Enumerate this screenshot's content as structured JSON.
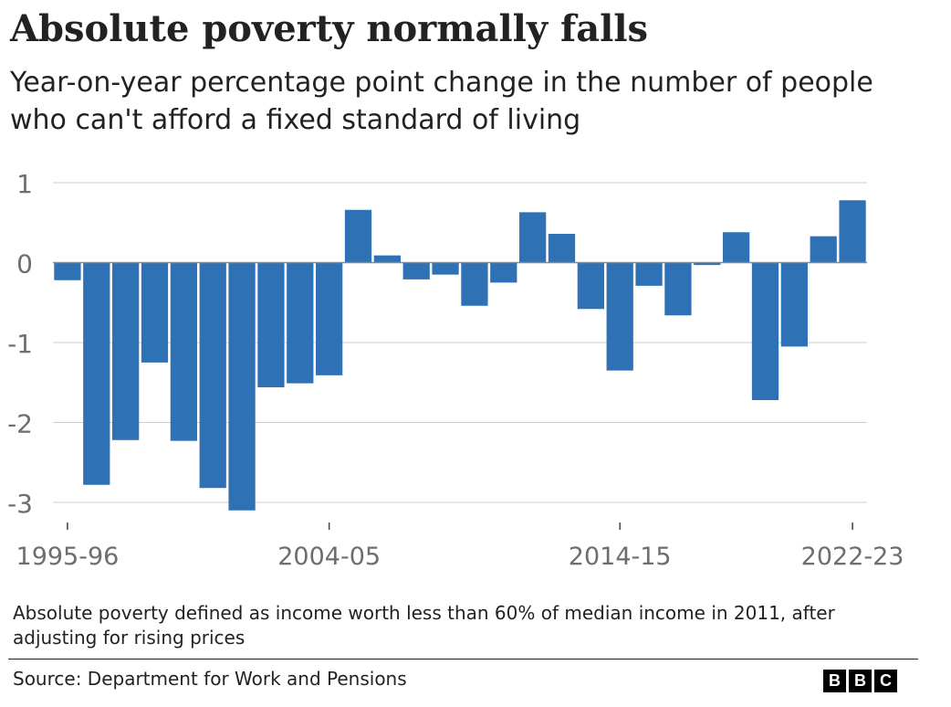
{
  "header": {
    "title": "Absolute poverty normally falls",
    "subtitle": "Year-on-year percentage point change in the number of people who can't afford a fixed standard of living"
  },
  "footer": {
    "note": "Absolute poverty defined as income worth less than 60% of median income in 2011, after adjusting for rising prices",
    "source": "Source: Department for Work and Pensions",
    "logo_letters": [
      "B",
      "B",
      "C"
    ]
  },
  "colors": {
    "bar": "#2e72b5",
    "grid": "#cccccc",
    "zero_line": "#8a8a8a",
    "axis_text": "#6e6e6e"
  },
  "chart_data": {
    "type": "bar",
    "title": "Absolute poverty normally falls",
    "subtitle": "Year-on-year percentage point change in the number of people who can't afford a fixed standard of living",
    "xlabel": "",
    "ylabel": "",
    "ylim": [
      -3.1,
      1
    ],
    "yticks": [
      1,
      0,
      -1,
      -2,
      -3
    ],
    "grid": true,
    "x_tick_labels": [
      {
        "index": 0,
        "label": "1995-96"
      },
      {
        "index": 9,
        "label": "2004-05"
      },
      {
        "index": 19,
        "label": "2014-15"
      },
      {
        "index": 27,
        "label": "2022-23"
      }
    ],
    "values": [
      -0.22,
      -2.78,
      -2.22,
      -1.25,
      -2.23,
      -2.82,
      -3.1,
      -1.56,
      -1.51,
      -1.41,
      0.66,
      0.09,
      -0.21,
      -0.15,
      -0.54,
      -0.25,
      0.63,
      0.36,
      -0.58,
      -1.35,
      -0.29,
      -0.66,
      -0.03,
      0.38,
      -1.72,
      -1.05,
      0.33,
      0.78
    ]
  }
}
